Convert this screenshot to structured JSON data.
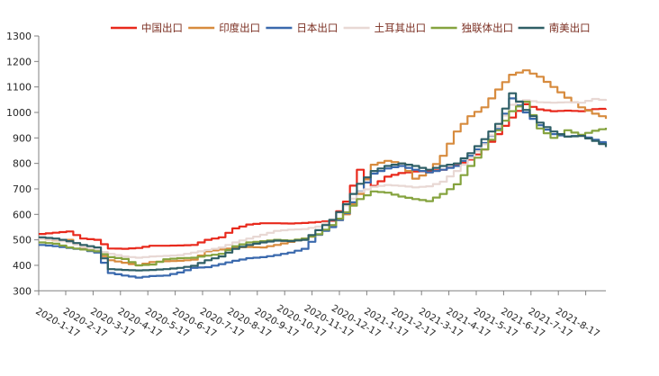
{
  "chart_data": {
    "type": "line",
    "title": "",
    "xlabel": "",
    "ylabel": "",
    "ylim": [
      300,
      1300
    ],
    "y_ticks": [
      300,
      400,
      500,
      600,
      700,
      800,
      900,
      1000,
      1100,
      1200,
      1300
    ],
    "x_tick_labels": [
      "2020-1-17",
      "2020-2-17",
      "2020-3-17",
      "2020-4-17",
      "2020-5-17",
      "2020-6-17",
      "2020-7-17",
      "2020-8-17",
      "2020-9-17",
      "2020-10-17",
      "2020-11-17",
      "2020-12-17",
      "2021-1-17",
      "2021-2-17",
      "2021-3-17",
      "2021-4-17",
      "2021-5-17",
      "2021-6-17",
      "2021-7-17",
      "2021-8-17"
    ],
    "grid": false,
    "legend_position": "top",
    "sampling": "approx. 2-week intervals from 2020-1-17 through 2021-8-17",
    "series": [
      {
        "name": "中国出口",
        "color": "#e8291c",
        "values": [
          523,
          528,
          533,
          505,
          500,
          466,
          465,
          468,
          477,
          477,
          478,
          480,
          500,
          510,
          545,
          560,
          565,
          565,
          564,
          566,
          570,
          575,
          650,
          775,
          712,
          748,
          762,
          768,
          770,
          775,
          792,
          815,
          855,
          915,
          980,
          1032,
          1012,
          1005,
          1007,
          1005,
          1013,
          1015
        ]
      },
      {
        "name": "印度出口",
        "color": "#d78b3e",
        "values": [
          505,
          498,
          500,
          468,
          452,
          420,
          410,
          400,
          413,
          416,
          418,
          422,
          455,
          462,
          470,
          472,
          470,
          480,
          492,
          505,
          520,
          555,
          600,
          680,
          795,
          810,
          800,
          740,
          765,
          830,
          925,
          985,
          1020,
          1090,
          1148,
          1165,
          1140,
          1100,
          1058,
          1020,
          995,
          975
        ]
      },
      {
        "name": "日本出口",
        "color": "#3a69ad",
        "values": [
          480,
          475,
          468,
          462,
          450,
          370,
          360,
          352,
          358,
          360,
          372,
          390,
          393,
          405,
          418,
          428,
          432,
          440,
          450,
          465,
          520,
          550,
          605,
          690,
          760,
          780,
          790,
          775,
          765,
          775,
          790,
          830,
          880,
          935,
          1055,
          1000,
          950,
          915,
          905,
          910,
          893,
          874
        ]
      },
      {
        "name": "土耳其出口",
        "color": "#e8d8d4",
        "values": [
          505,
          500,
          490,
          472,
          460,
          445,
          435,
          430,
          435,
          437,
          440,
          450,
          460,
          470,
          490,
          505,
          520,
          535,
          540,
          542,
          552,
          580,
          635,
          688,
          708,
          715,
          712,
          706,
          710,
          728,
          770,
          820,
          875,
          945,
          1030,
          1048,
          1040,
          1038,
          1040,
          1038,
          1053,
          1046
        ]
      },
      {
        "name": "独联体出口",
        "color": "#85a33f",
        "values": [
          490,
          485,
          470,
          462,
          455,
          432,
          425,
          400,
          403,
          424,
          428,
          430,
          438,
          445,
          475,
          490,
          495,
          500,
          497,
          505,
          522,
          558,
          608,
          660,
          690,
          685,
          670,
          660,
          652,
          680,
          718,
          790,
          855,
          930,
          1005,
          1042,
          937,
          900,
          930,
          912,
          928,
          940
        ]
      },
      {
        "name": "南美出口",
        "color": "#2f5f66",
        "values": [
          510,
          505,
          495,
          480,
          470,
          385,
          382,
          380,
          382,
          385,
          390,
          398,
          420,
          435,
          465,
          480,
          490,
          497,
          495,
          500,
          538,
          578,
          640,
          720,
          770,
          790,
          800,
          790,
          775,
          790,
          800,
          840,
          895,
          955,
          1075,
          1010,
          960,
          925,
          905,
          908,
          888,
          864
        ]
      }
    ]
  },
  "styles": {
    "axis_color": "#808080",
    "tick_label_color": "#262626",
    "legend_text_color": "#7b2f22",
    "background": "#ffffff"
  }
}
